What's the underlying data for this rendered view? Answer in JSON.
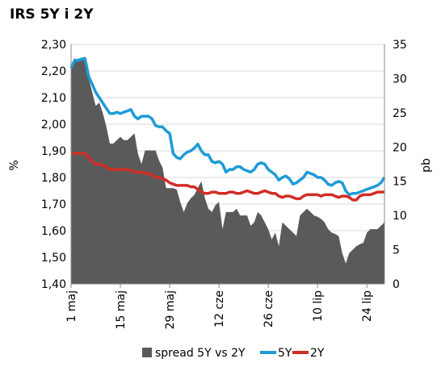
{
  "chart_data": {
    "type": "area+line",
    "title": "IRS 5Y i 2Y",
    "ylabel": "%",
    "y2label": "pb",
    "ylim": [
      1.4,
      2.3
    ],
    "y2lim": [
      0,
      35
    ],
    "yticks": [
      "2,30",
      "2,20",
      "2,10",
      "2,00",
      "1,90",
      "1,80",
      "1,70",
      "1,60",
      "1,50",
      "1,40"
    ],
    "y2ticks": [
      "35",
      "30",
      "25",
      "20",
      "15",
      "10",
      "5",
      "0"
    ],
    "xticks": [
      "1 maj",
      "15 maj",
      "29 maj",
      "12 cze",
      "26 cze",
      "10 lip",
      "24 lip"
    ],
    "x_days": [
      1,
      2,
      3,
      4,
      5,
      6,
      7,
      8,
      9,
      10,
      11,
      12,
      13,
      14,
      15,
      16,
      17,
      18,
      19,
      20,
      21,
      22,
      23,
      24,
      25,
      26,
      27,
      28,
      29,
      30,
      31,
      32,
      33,
      34,
      35,
      36,
      37,
      38,
      39,
      40,
      41,
      42,
      43,
      44,
      45,
      46,
      47,
      48,
      49,
      50,
      51,
      52,
      53,
      54,
      55,
      56,
      57,
      58,
      59,
      60,
      61,
      62,
      63,
      64,
      65,
      66,
      67,
      68,
      69,
      70,
      71,
      72,
      73,
      74,
      75,
      76,
      77,
      78,
      79,
      80,
      81,
      82,
      83,
      84,
      85,
      86,
      87,
      88,
      89,
      90
    ],
    "legend_position": "bottom",
    "series": [
      {
        "name": "spread 5Y vs 2Y",
        "kind": "area",
        "axis": "right",
        "color": "#5a5a5a",
        "values": [
          31.5,
          33,
          32.5,
          33,
          33.2,
          30,
          28,
          26,
          26.5,
          25,
          23,
          20.5,
          20.5,
          21,
          21.5,
          21,
          21,
          21.5,
          22,
          19,
          17.5,
          19.5,
          19.5,
          19.5,
          19.5,
          18,
          17,
          14,
          14,
          14,
          13.8,
          12,
          10.5,
          11.8,
          12.5,
          13,
          14,
          15,
          12.5,
          11,
          10.5,
          11.5,
          12,
          8,
          10.5,
          10.5,
          10.5,
          11,
          10,
          10,
          10,
          8.5,
          9,
          10.5,
          10,
          9,
          8,
          6.5,
          7.5,
          5.5,
          9,
          8.5,
          8,
          7.5,
          7,
          10,
          10.5,
          11,
          10.5,
          10,
          9.8,
          9.5,
          9,
          8,
          7.5,
          7.3,
          7,
          4.5,
          3,
          4.5,
          5,
          5.5,
          5.8,
          6,
          7.5,
          8,
          8,
          8,
          8.5,
          9
        ]
      },
      {
        "name": "5Y",
        "kind": "line",
        "axis": "left",
        "color": "#1e9bd7",
        "values": [
          2.21,
          2.24,
          2.24,
          2.245,
          2.245,
          2.18,
          2.15,
          2.12,
          2.1,
          2.08,
          2.06,
          2.04,
          2.04,
          2.045,
          2.04,
          2.045,
          2.05,
          2.055,
          2.03,
          2.02,
          2.03,
          2.03,
          2.03,
          2.02,
          1.995,
          1.99,
          1.99,
          1.975,
          1.965,
          1.89,
          1.875,
          1.87,
          1.885,
          1.895,
          1.9,
          1.91,
          1.925,
          1.9,
          1.885,
          1.885,
          1.86,
          1.855,
          1.86,
          1.85,
          1.82,
          1.83,
          1.83,
          1.84,
          1.84,
          1.83,
          1.825,
          1.82,
          1.83,
          1.85,
          1.855,
          1.85,
          1.83,
          1.82,
          1.81,
          1.79,
          1.8,
          1.805,
          1.795,
          1.775,
          1.78,
          1.79,
          1.8,
          1.82,
          1.815,
          1.81,
          1.8,
          1.8,
          1.79,
          1.775,
          1.77,
          1.78,
          1.785,
          1.78,
          1.75,
          1.735,
          1.74,
          1.74,
          1.745,
          1.75,
          1.755,
          1.76,
          1.765,
          1.77,
          1.78,
          1.8
        ]
      },
      {
        "name": "2Y",
        "kind": "line",
        "axis": "left",
        "color": "#d02e26",
        "values": [
          1.89,
          1.89,
          1.89,
          1.89,
          1.89,
          1.875,
          1.86,
          1.85,
          1.85,
          1.845,
          1.84,
          1.83,
          1.83,
          1.83,
          1.83,
          1.83,
          1.83,
          1.825,
          1.82,
          1.82,
          1.82,
          1.815,
          1.815,
          1.81,
          1.8,
          1.8,
          1.795,
          1.79,
          1.78,
          1.775,
          1.77,
          1.77,
          1.77,
          1.77,
          1.765,
          1.765,
          1.755,
          1.745,
          1.74,
          1.74,
          1.745,
          1.745,
          1.74,
          1.74,
          1.74,
          1.745,
          1.745,
          1.74,
          1.74,
          1.745,
          1.75,
          1.745,
          1.74,
          1.74,
          1.745,
          1.75,
          1.745,
          1.74,
          1.74,
          1.73,
          1.725,
          1.73,
          1.73,
          1.725,
          1.72,
          1.72,
          1.73,
          1.735,
          1.735,
          1.735,
          1.735,
          1.73,
          1.735,
          1.735,
          1.735,
          1.73,
          1.725,
          1.73,
          1.73,
          1.725,
          1.715,
          1.715,
          1.73,
          1.735,
          1.735,
          1.735,
          1.74,
          1.745,
          1.745,
          1.745
        ]
      }
    ]
  }
}
